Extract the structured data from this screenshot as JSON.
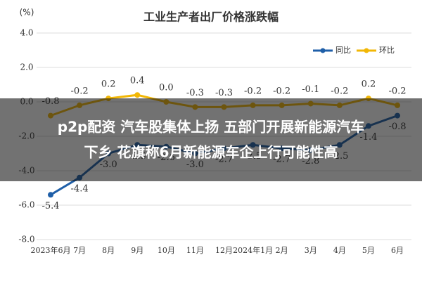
{
  "chart_data": {
    "type": "line",
    "title": "工业生产者出厂价格涨跌幅",
    "y_label": "(%)",
    "categories": [
      "2023年6月",
      "7月",
      "8月",
      "9月",
      "10月",
      "11月",
      "12月",
      "2024年1月",
      "2月",
      "3月",
      "4月",
      "5月",
      "6月"
    ],
    "series": [
      {
        "name": "同比",
        "color": "#1f5fa8",
        "values": [
          -5.4,
          -4.4,
          -3.0,
          -2.5,
          -2.6,
          -3.0,
          -2.7,
          -2.5,
          -2.7,
          -2.8,
          -2.5,
          -1.4,
          -0.8
        ],
        "value_labels": [
          "-5.4",
          "-4.4",
          "-3.0",
          "-2.5",
          "-2.6",
          "-3.0",
          "-2.7",
          "-2.5",
          "-2.7",
          "-2.8",
          "-2.5",
          "-1.4",
          "-0.8"
        ]
      },
      {
        "name": "环比",
        "color": "#f2b705",
        "values": [
          -0.8,
          -0.2,
          0.2,
          0.4,
          0.0,
          -0.3,
          -0.3,
          -0.2,
          -0.2,
          -0.1,
          -0.2,
          0.2,
          -0.2
        ],
        "value_labels": [
          "-0.8",
          "-0.2",
          "0.2",
          "0.4",
          "0.0",
          "-0.3",
          "-0.3",
          "-0.2",
          "-0.2",
          "-0.1",
          "-0.2",
          "0.2",
          "-0.2"
        ]
      }
    ],
    "ylim": [
      -8,
      4
    ],
    "yticks": [
      {
        "value": -8,
        "label": "-8.0"
      },
      {
        "value": -6,
        "label": "-6.0"
      },
      {
        "value": -4,
        "label": "-4.0"
      },
      {
        "value": -2,
        "label": "-2.0"
      },
      {
        "value": 0,
        "label": "0.0"
      },
      {
        "value": 2,
        "label": "2.0"
      },
      {
        "value": 4,
        "label": "4.0"
      }
    ],
    "grid": true,
    "legend": "top-right"
  },
  "overlay": {
    "lines": [
      "p2p配资 汽车股集体上扬 五部门开展新能源汽车",
      "下乡 花旗称6月新能源车企上行可能性高"
    ]
  }
}
